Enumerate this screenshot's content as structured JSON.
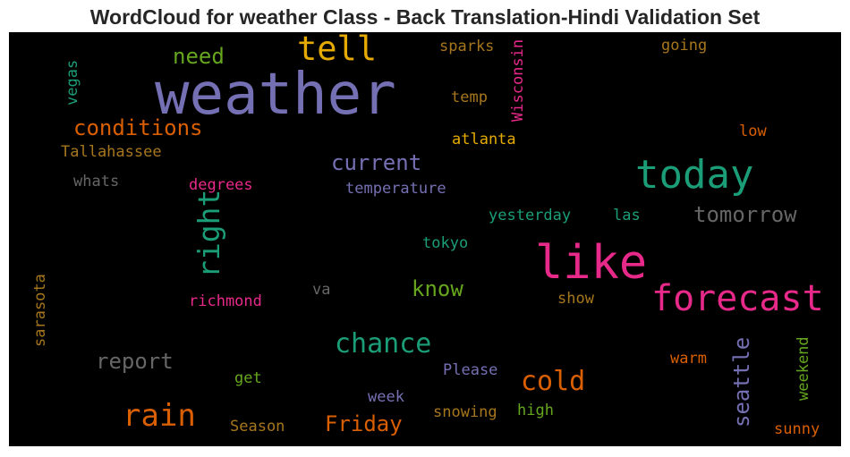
{
  "title": "WordCloud for weather Class - Back Translation-Hindi Validation Set",
  "words": [
    {
      "text": "weather",
      "color": "#7570b3"
    },
    {
      "text": "tell",
      "color": "#e6ab02"
    },
    {
      "text": "need",
      "color": "#66a61e"
    },
    {
      "text": "sparks",
      "color": "#a6761d"
    },
    {
      "text": "Wisconsin",
      "color": "#e7298a"
    },
    {
      "text": "going",
      "color": "#a6761d"
    },
    {
      "text": "vegas",
      "color": "#1b9e77"
    },
    {
      "text": "temp",
      "color": "#a6761d"
    },
    {
      "text": "conditions",
      "color": "#d95f02"
    },
    {
      "text": "low",
      "color": "#d95f02"
    },
    {
      "text": "atlanta",
      "color": "#e6ab02"
    },
    {
      "text": "Tallahassee",
      "color": "#a6761d"
    },
    {
      "text": "current",
      "color": "#7570b3"
    },
    {
      "text": "today",
      "color": "#1b9e77"
    },
    {
      "text": "whats",
      "color": "#666666"
    },
    {
      "text": "degrees",
      "color": "#e7298a"
    },
    {
      "text": "temperature",
      "color": "#7570b3"
    },
    {
      "text": "right",
      "color": "#1b9e77"
    },
    {
      "text": "yesterday",
      "color": "#1b9e77"
    },
    {
      "text": "las",
      "color": "#1b9e77"
    },
    {
      "text": "tomorrow",
      "color": "#666666"
    },
    {
      "text": "tokyo",
      "color": "#1b9e77"
    },
    {
      "text": "like",
      "color": "#e7298a"
    },
    {
      "text": "sarasota",
      "color": "#a6761d"
    },
    {
      "text": "know",
      "color": "#66a61e"
    },
    {
      "text": "forecast",
      "color": "#e7298a"
    },
    {
      "text": "va",
      "color": "#666666"
    },
    {
      "text": "richmond",
      "color": "#e7298a"
    },
    {
      "text": "show",
      "color": "#a6761d"
    },
    {
      "text": "chance",
      "color": "#1b9e77"
    },
    {
      "text": "report",
      "color": "#666666"
    },
    {
      "text": "seattle",
      "color": "#7570b3"
    },
    {
      "text": "weekend",
      "color": "#66a61e"
    },
    {
      "text": "warm",
      "color": "#d95f02"
    },
    {
      "text": "Please",
      "color": "#7570b3"
    },
    {
      "text": "get",
      "color": "#66a61e"
    },
    {
      "text": "cold",
      "color": "#d95f02"
    },
    {
      "text": "week",
      "color": "#7570b3"
    },
    {
      "text": "rain",
      "color": "#d95f02"
    },
    {
      "text": "snowing",
      "color": "#a6761d"
    },
    {
      "text": "high",
      "color": "#66a61e"
    },
    {
      "text": "Season",
      "color": "#a6761d"
    },
    {
      "text": "Friday",
      "color": "#d95f02"
    },
    {
      "text": "sunny",
      "color": "#d95f02"
    }
  ]
}
